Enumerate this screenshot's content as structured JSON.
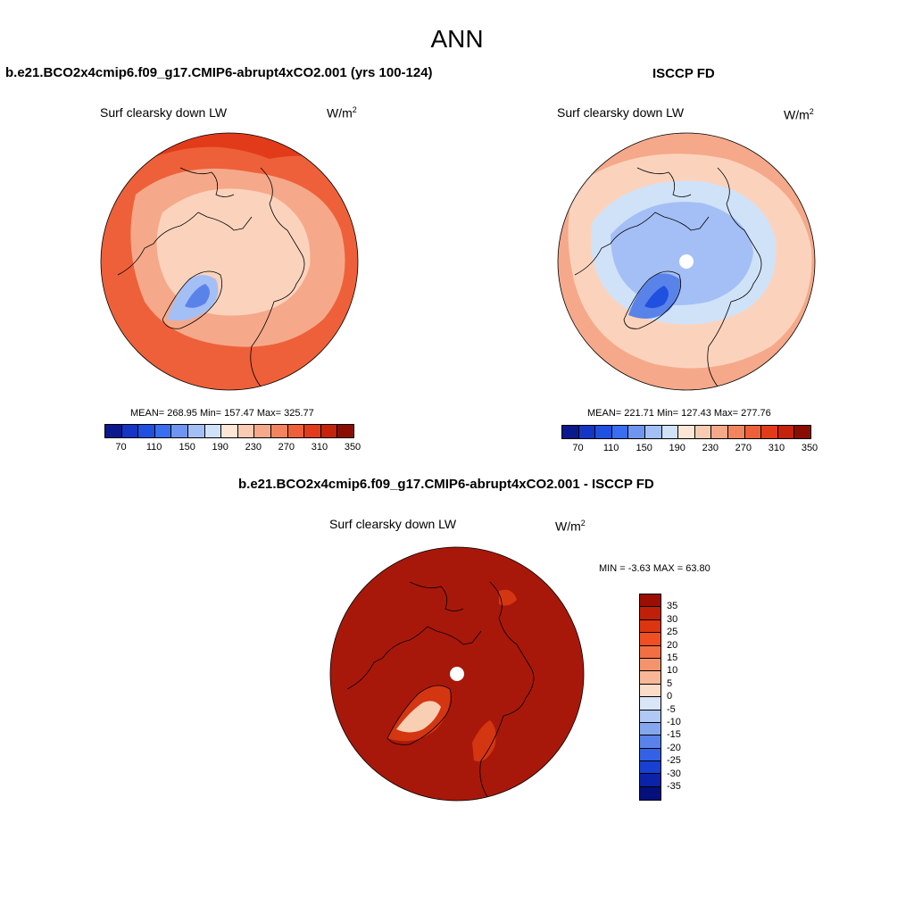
{
  "title": "ANN",
  "panels": {
    "model": {
      "title": "b.e21.BCO2x4cmip6.f09_g17.CMIP6-abrupt4xCO2.001 (yrs 100-124)",
      "variable": "Surf clearsky down LW",
      "units_base": "W/m",
      "units_exp": "2",
      "stats": "MEAN= 268.95  Min= 157.47  Max= 325.77"
    },
    "obs": {
      "title": "ISCCP FD",
      "variable": "Surf clearsky down LW",
      "units_base": "W/m",
      "units_exp": "2",
      "stats": "MEAN= 221.71  Min= 127.43  Max= 277.76"
    },
    "diff": {
      "title": "b.e21.BCO2x4cmip6.f09_g17.CMIP6-abrupt4xCO2.001 - ISCCP FD",
      "variable": "Surf clearsky down LW",
      "units_base": "W/m",
      "units_exp": "2",
      "stats": "MIN =  -3.63 MAX =  63.80"
    }
  },
  "colorbar_abs": {
    "ticks": [
      "70",
      "110",
      "150",
      "190",
      "230",
      "270",
      "310",
      "350"
    ],
    "colors": [
      "#0a1a8c",
      "#1535c4",
      "#2050e0",
      "#3a6ef0",
      "#6f95f0",
      "#a4bff5",
      "#d0e2f8",
      "#fde6d6",
      "#f9cbb2",
      "#f5a98a",
      "#f2855f",
      "#ee6039",
      "#e23b1a",
      "#c4230c",
      "#8a0d04"
    ]
  },
  "colorbar_diff": {
    "ticks": [
      "35",
      "30",
      "25",
      "20",
      "15",
      "10",
      "5",
      "0",
      "-5",
      "-10",
      "-15",
      "-20",
      "-25",
      "-30",
      "-35"
    ],
    "colors": [
      "#9c0d03",
      "#c01f0a",
      "#dc3510",
      "#ef4f22",
      "#f26f44",
      "#f5946c",
      "#f8b898",
      "#fbdcc8",
      "#d8e6f8",
      "#b0c8f3",
      "#85a7ef",
      "#5a83ea",
      "#3462e6",
      "#1840d2",
      "#0a23a8",
      "#06107c"
    ]
  },
  "map_colors": {
    "ocean_warm": "#ee6039",
    "ring_outer": "#e23b1a",
    "pale": "#fbd3bd",
    "mid": "#f5a98a",
    "blue_light": "#a4bff5",
    "blue_mid": "#5a83ea",
    "blue_dark": "#2050e0",
    "pale_blue": "#d0e2f8",
    "diff_bg": "#a8180a",
    "diff_hot": "#d43612",
    "diff_pale": "#f9cfb4"
  }
}
